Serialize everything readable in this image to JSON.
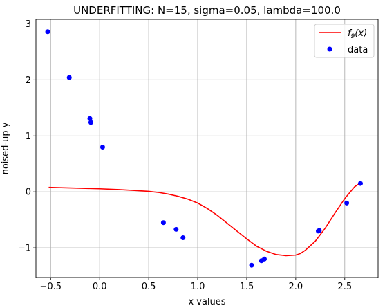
{
  "chart_data": {
    "type": "scatter",
    "title": "UNDERFITTING: N=15, sigma=0.05, lambda=100.0",
    "xlabel": "x values",
    "ylabel": "noised-up y",
    "xlim": [
      -0.65,
      2.84
    ],
    "ylim": [
      -1.53,
      3.08
    ],
    "grid": true,
    "legend_position": "upper-right",
    "xticks": [
      -0.5,
      0.0,
      0.5,
      1.0,
      1.5,
      2.0,
      2.5
    ],
    "xtick_labels": [
      "−0.5",
      "0.0",
      "0.5",
      "1.0",
      "1.5",
      "2.0",
      "2.5"
    ],
    "yticks": [
      -1,
      0,
      1,
      2,
      3
    ],
    "ytick_labels": [
      "−1",
      "0",
      "1",
      "2",
      "3"
    ],
    "series": [
      {
        "name": "f9(x)",
        "legend_label": "f",
        "legend_subscript": "9",
        "legend_suffix": "(x)",
        "kind": "line",
        "color": "#ff0000",
        "x": [
          -0.52,
          -0.3,
          -0.1,
          0.0,
          0.2,
          0.4,
          0.5,
          0.6,
          0.7,
          0.8,
          0.9,
          1.0,
          1.1,
          1.2,
          1.3,
          1.4,
          1.5,
          1.6,
          1.7,
          1.8,
          1.9,
          2.0,
          2.05,
          2.1,
          2.2,
          2.3,
          2.4,
          2.5,
          2.6,
          2.66
        ],
        "y": [
          0.08,
          0.07,
          0.06,
          0.055,
          0.04,
          0.02,
          0.01,
          -0.01,
          -0.04,
          -0.08,
          -0.13,
          -0.2,
          -0.3,
          -0.42,
          -0.56,
          -0.7,
          -0.84,
          -0.97,
          -1.06,
          -1.12,
          -1.14,
          -1.13,
          -1.1,
          -1.04,
          -0.88,
          -0.65,
          -0.38,
          -0.12,
          0.09,
          0.16
        ]
      },
      {
        "name": "data",
        "kind": "scatter",
        "color": "#0000ff",
        "x": [
          -0.53,
          -0.31,
          -0.1,
          -0.09,
          0.03,
          0.65,
          0.78,
          0.85,
          1.55,
          1.65,
          1.68,
          2.23,
          2.24,
          2.52,
          2.66
        ],
        "y": [
          2.86,
          2.04,
          1.31,
          1.24,
          0.8,
          -0.55,
          -0.67,
          -0.82,
          -1.31,
          -1.23,
          -1.2,
          -0.7,
          -0.69,
          -0.2,
          0.15
        ]
      }
    ]
  }
}
